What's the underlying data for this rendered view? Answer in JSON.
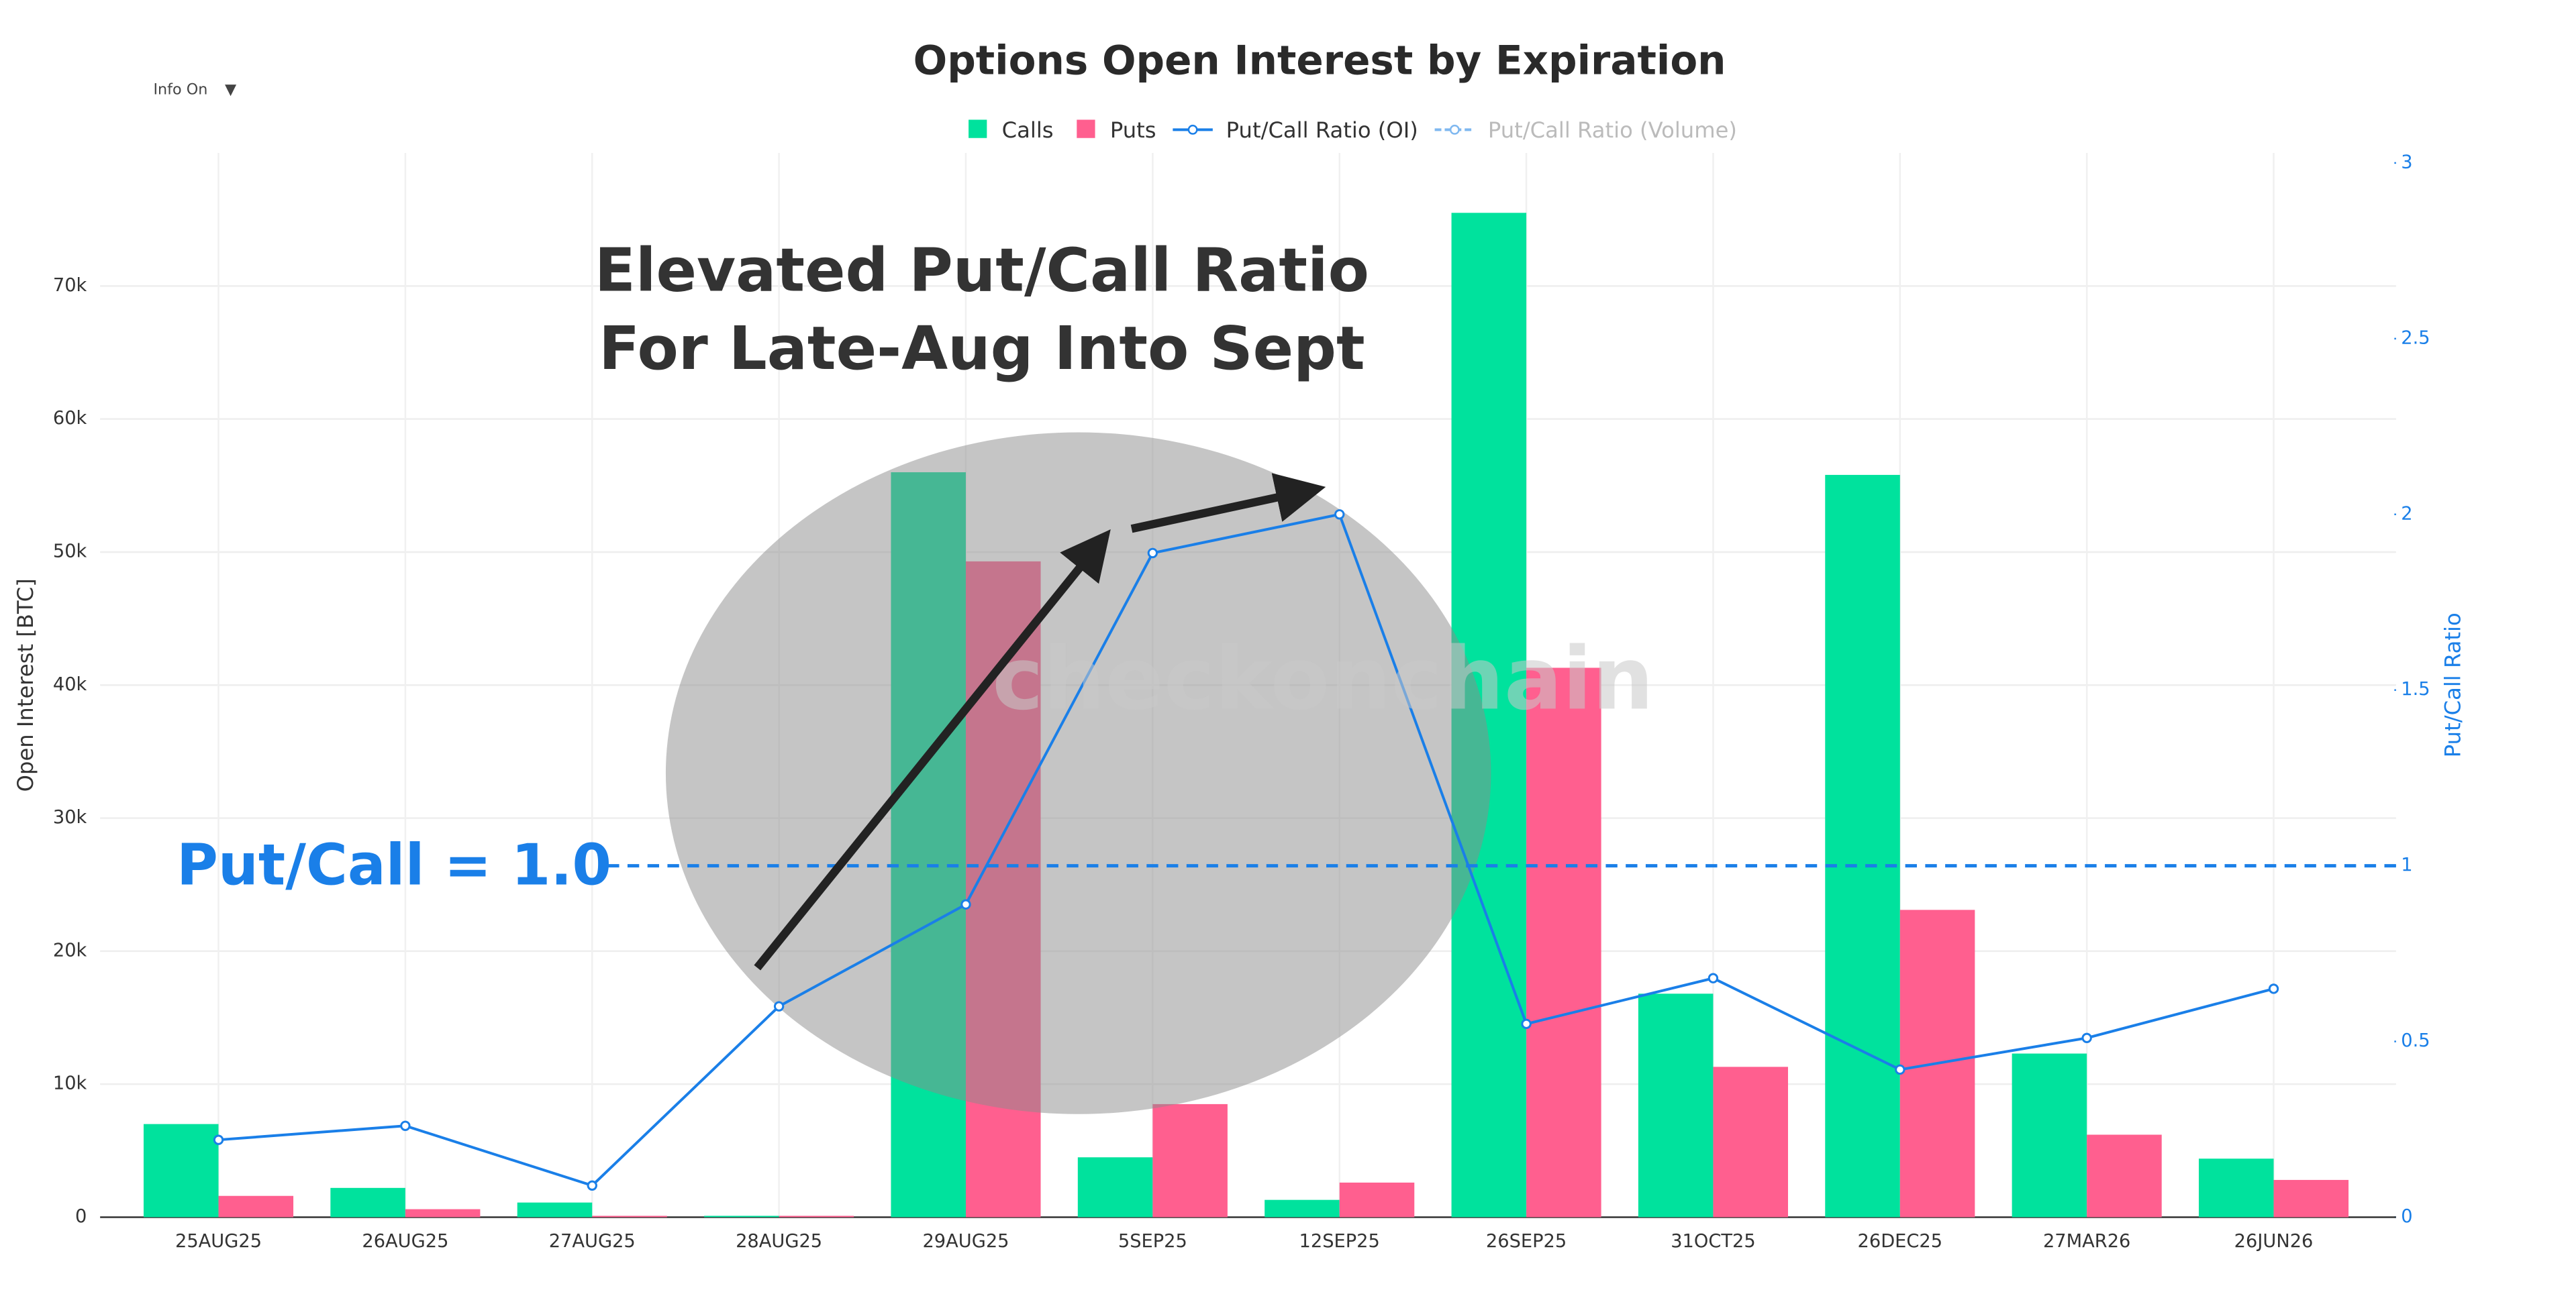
{
  "chart_data": {
    "type": "bar",
    "title": "Options Open Interest by Expiration",
    "control": "Info On",
    "watermark": "checkonchain",
    "annotation": [
      "Elevated Put/Call Ratio",
      "For Late-Aug Into Sept"
    ],
    "reference_line": {
      "value": 1,
      "label": "Put/Call = 1.0"
    },
    "ylabel": "Open Interest [BTC]",
    "y2label": "Put/Call Ratio",
    "categories": [
      "25AUG25",
      "26AUG25",
      "27AUG25",
      "28AUG25",
      "29AUG25",
      "5SEP25",
      "12SEP25",
      "26SEP25",
      "31OCT25",
      "26DEC25",
      "27MAR26",
      "26JUN26"
    ],
    "series": [
      {
        "name": "Calls",
        "type": "bar",
        "color": "#00e29d",
        "values": [
          7000,
          2200,
          1100,
          100,
          56000,
          4500,
          1300,
          75500,
          16800,
          55800,
          12300,
          4400
        ]
      },
      {
        "name": "Puts",
        "type": "bar",
        "color": "#ff5f8f",
        "values": [
          1600,
          600,
          100,
          100,
          49300,
          8500,
          2600,
          41300,
          11300,
          23100,
          6200,
          2800
        ]
      },
      {
        "name": "Put/Call Ratio (OI)",
        "type": "line",
        "axis": "y2",
        "color": "#1a7fe8",
        "values": [
          0.22,
          0.26,
          0.09,
          0.6,
          0.89,
          1.89,
          2.0,
          0.55,
          0.68,
          0.42,
          0.51,
          0.65
        ]
      },
      {
        "name": "Put/Call Ratio (Volume)",
        "type": "line",
        "axis": "y2",
        "color": "#7fb8f0",
        "hidden": true,
        "values": [
          null,
          null,
          null,
          null,
          null,
          null,
          null,
          null,
          null,
          null,
          null,
          null
        ]
      }
    ],
    "ylim": [
      0,
      80000
    ],
    "yticks": [
      0,
      {
        "value": 10000,
        "label": "10k"
      },
      {
        "value": 20000,
        "label": "20k"
      },
      {
        "value": 30000,
        "label": "30k"
      },
      {
        "value": 40000,
        "label": "40k"
      },
      {
        "value": 50000,
        "label": "50k"
      },
      {
        "value": 60000,
        "label": "60k"
      },
      {
        "value": 70000,
        "label": "70k"
      }
    ],
    "y2lim": [
      0,
      3
    ],
    "y2ticks": [
      0,
      0.5,
      1,
      1.5,
      2,
      2.5,
      3
    ],
    "grid": true
  }
}
